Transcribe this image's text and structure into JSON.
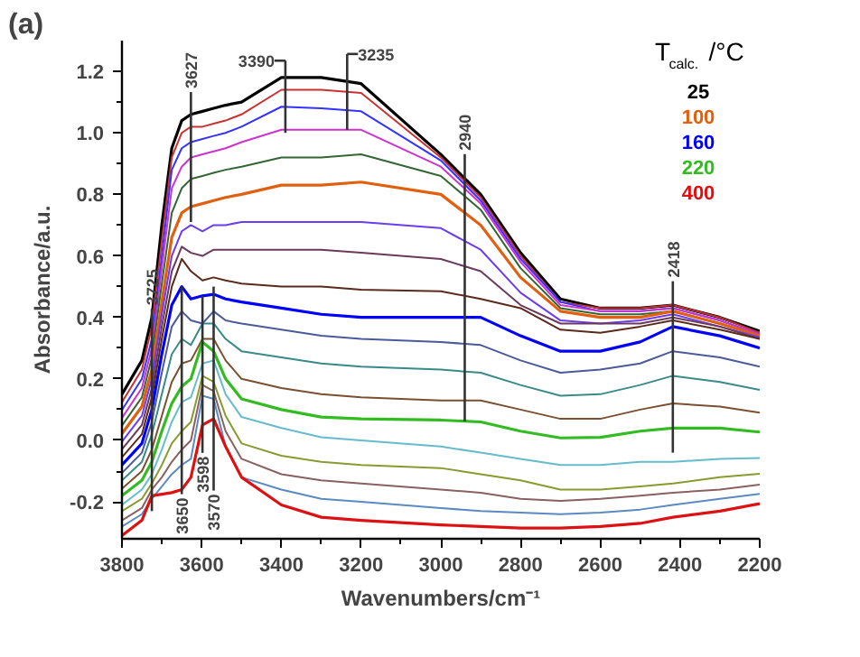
{
  "chart_data": {
    "type": "line",
    "xlabel": "Wavenumbers/cm⁻¹",
    "ylabel": "Absorbance/a.u.",
    "legend_title": "T$_{calc.}$/°C",
    "marker": "none",
    "line_style": "solid",
    "xlim": [
      3800,
      2200
    ],
    "xticks": [
      3800,
      3600,
      3400,
      3200,
      3000,
      2800,
      2600,
      2400,
      2200
    ],
    "ylim": [
      -0.32,
      1.3
    ],
    "yticks": [
      {
        "value": -0.2,
        "label": "-0.2"
      },
      {
        "value": 0,
        "label": "0.0"
      },
      {
        "value": 0.2,
        "label": "0.2"
      },
      {
        "value": 0.4,
        "label": "0.4"
      },
      {
        "value": 0.6,
        "label": "0.6"
      },
      {
        "value": 0.8,
        "label": "0.8"
      },
      {
        "value": 1.0,
        "label": "1.0"
      },
      {
        "value": 1.2,
        "label": "1.2"
      }
    ],
    "x": [
      3800,
      3750,
      3725,
      3700,
      3675,
      3650,
      3627,
      3598,
      3570,
      3540,
      3500,
      3400,
      3300,
      3200,
      3000,
      2900,
      2800,
      2700,
      2600,
      2500,
      2418,
      2300,
      2200
    ],
    "series": [
      {
        "name": "25",
        "color": "#000000",
        "values": [
          0.15,
          0.26,
          0.4,
          0.7,
          0.95,
          1.04,
          1.06,
          1.07,
          1.08,
          1.09,
          1.1,
          1.18,
          1.18,
          1.16,
          0.93,
          0.8,
          0.61,
          0.46,
          0.43,
          0.43,
          0.44,
          0.4,
          0.355
        ]
      },
      {
        "color": "#c83232",
        "values": [
          0.124,
          0.23,
          0.37,
          0.65,
          0.92,
          1.0,
          1.02,
          1.02,
          1.03,
          1.04,
          1.06,
          1.14,
          1.14,
          1.13,
          0.92,
          0.79,
          0.6,
          0.45,
          0.43,
          0.43,
          0.44,
          0.4,
          0.35
        ]
      },
      {
        "color": "#3333ff",
        "values": [
          0.099,
          0.2,
          0.33,
          0.6,
          0.88,
          0.95,
          0.97,
          0.98,
          0.99,
          1.0,
          1.02,
          1.085,
          1.08,
          1.07,
          0.91,
          0.78,
          0.59,
          0.45,
          0.42,
          0.42,
          0.43,
          0.39,
          0.345
        ]
      },
      {
        "color": "#cc33cc",
        "values": [
          0.073,
          0.17,
          0.3,
          0.56,
          0.82,
          0.89,
          0.92,
          0.93,
          0.94,
          0.95,
          0.97,
          1.01,
          1.01,
          1.01,
          0.89,
          0.77,
          0.58,
          0.44,
          0.42,
          0.42,
          0.43,
          0.39,
          0.345
        ]
      },
      {
        "color": "#336633",
        "values": [
          0.048,
          0.14,
          0.27,
          0.51,
          0.74,
          0.82,
          0.85,
          0.86,
          0.87,
          0.88,
          0.89,
          0.92,
          0.92,
          0.93,
          0.86,
          0.75,
          0.56,
          0.43,
          0.41,
          0.41,
          0.42,
          0.38,
          0.34
        ]
      },
      {
        "name": "100",
        "color": "#e06010",
        "values": [
          0.022,
          0.11,
          0.23,
          0.45,
          0.66,
          0.74,
          0.76,
          0.77,
          0.78,
          0.79,
          0.8,
          0.83,
          0.83,
          0.84,
          0.8,
          0.7,
          0.53,
          0.42,
          0.4,
          0.4,
          0.42,
          0.38,
          0.34
        ]
      },
      {
        "color": "#6a3df0",
        "values": [
          -0.004,
          0.08,
          0.2,
          0.41,
          0.6,
          0.68,
          0.7,
          0.68,
          0.7,
          0.7,
          0.71,
          0.71,
          0.71,
          0.71,
          0.69,
          0.62,
          0.48,
          0.39,
          0.38,
          0.39,
          0.41,
          0.37,
          0.335
        ]
      },
      {
        "color": "#6b3a5a",
        "values": [
          -0.029,
          0.05,
          0.17,
          0.37,
          0.55,
          0.63,
          0.61,
          0.6,
          0.62,
          0.62,
          0.62,
          0.62,
          0.62,
          0.61,
          0.59,
          0.55,
          0.44,
          0.38,
          0.38,
          0.38,
          0.4,
          0.37,
          0.33
        ]
      },
      {
        "color": "#5a2a1a",
        "values": [
          -0.055,
          0.02,
          0.14,
          0.33,
          0.5,
          0.59,
          0.55,
          0.52,
          0.53,
          0.52,
          0.51,
          0.5,
          0.5,
          0.49,
          0.485,
          0.46,
          0.43,
          0.36,
          0.35,
          0.37,
          0.39,
          0.36,
          0.33
        ]
      },
      {
        "name": "160",
        "color": "#0000ff",
        "values": [
          -0.08,
          -0.01,
          0.1,
          0.28,
          0.44,
          0.5,
          0.46,
          0.47,
          0.475,
          0.46,
          0.45,
          0.43,
          0.41,
          0.4,
          0.4,
          0.4,
          0.34,
          0.29,
          0.29,
          0.32,
          0.37,
          0.34,
          0.3
        ]
      },
      {
        "color": "#4a5a9a",
        "values": [
          -0.106,
          -0.04,
          0.06,
          0.22,
          0.37,
          0.42,
          0.39,
          0.38,
          0.42,
          0.39,
          0.38,
          0.36,
          0.34,
          0.33,
          0.32,
          0.31,
          0.26,
          0.22,
          0.23,
          0.25,
          0.29,
          0.27,
          0.24
        ]
      },
      {
        "color": "#3a8a8a",
        "values": [
          -0.13,
          -0.07,
          0.02,
          0.15,
          0.28,
          0.33,
          0.31,
          0.38,
          0.38,
          0.33,
          0.29,
          0.27,
          0.25,
          0.24,
          0.23,
          0.22,
          0.18,
          0.145,
          0.15,
          0.18,
          0.21,
          0.19,
          0.164
        ]
      },
      {
        "color": "#7a5030",
        "values": [
          -0.157,
          -0.1,
          -0.03,
          0.08,
          0.19,
          0.25,
          0.26,
          0.33,
          0.33,
          0.26,
          0.2,
          0.17,
          0.15,
          0.14,
          0.13,
          0.13,
          0.1,
          0.07,
          0.07,
          0.1,
          0.12,
          0.11,
          0.09
        ]
      },
      {
        "name": "220",
        "color": "#33bb22",
        "values": [
          -0.18,
          -0.13,
          -0.07,
          0.03,
          0.12,
          0.175,
          0.2,
          0.32,
          0.29,
          0.2,
          0.135,
          0.1,
          0.076,
          0.07,
          0.066,
          0.06,
          0.03,
          0.008,
          0.01,
          0.03,
          0.04,
          0.04,
          0.027
        ]
      },
      {
        "color": "#66bbcc",
        "values": [
          -0.21,
          -0.16,
          -0.11,
          -0.03,
          0.06,
          0.125,
          0.14,
          0.25,
          0.26,
          0.15,
          0.076,
          0.04,
          0.01,
          0.0,
          -0.02,
          -0.04,
          -0.06,
          -0.08,
          -0.08,
          -0.07,
          -0.07,
          -0.06,
          -0.057
        ]
      },
      {
        "color": "#8a9a30",
        "values": [
          -0.23,
          -0.19,
          -0.14,
          -0.08,
          -0.01,
          0.03,
          0.06,
          0.21,
          0.19,
          0.08,
          -0.01,
          -0.05,
          -0.07,
          -0.08,
          -0.09,
          -0.11,
          -0.13,
          -0.16,
          -0.16,
          -0.15,
          -0.14,
          -0.12,
          -0.109
        ]
      },
      {
        "color": "#8a6060",
        "values": [
          -0.26,
          -0.22,
          -0.16,
          -0.12,
          -0.07,
          -0.03,
          0.0,
          0.18,
          0.16,
          0.03,
          -0.06,
          -0.11,
          -0.13,
          -0.14,
          -0.16,
          -0.17,
          -0.19,
          -0.197,
          -0.19,
          -0.18,
          -0.17,
          -0.16,
          -0.144
        ]
      },
      {
        "color": "#5a8ac0",
        "values": [
          -0.28,
          -0.24,
          -0.19,
          -0.15,
          -0.11,
          -0.08,
          -0.06,
          0.145,
          0.135,
          -0.02,
          -0.12,
          -0.16,
          -0.19,
          -0.2,
          -0.22,
          -0.23,
          -0.235,
          -0.24,
          -0.235,
          -0.225,
          -0.21,
          -0.19,
          -0.174
        ]
      },
      {
        "name": "400",
        "color": "#dd1111",
        "values": [
          -0.31,
          -0.26,
          -0.18,
          -0.175,
          -0.17,
          -0.16,
          -0.12,
          0.05,
          0.07,
          -0.02,
          -0.12,
          -0.21,
          -0.25,
          -0.26,
          -0.275,
          -0.28,
          -0.285,
          -0.285,
          -0.28,
          -0.27,
          -0.25,
          -0.23,
          -0.206
        ]
      }
    ],
    "annotations": [
      "(a)",
      {
        "text": "3390",
        "x": 3390,
        "y": 1.0
      },
      {
        "text": "3235",
        "x": 3235,
        "y": 1.01
      },
      {
        "text": "3627",
        "x": 3627,
        "y": 0.71
      },
      {
        "text": "2940",
        "x": 2940,
        "y": 0.062
      },
      {
        "text": "2418",
        "x": 2418,
        "y": -0.04
      },
      {
        "text": "3725",
        "x": 3725,
        "y": -0.23
      },
      {
        "text": "3650",
        "x": 3650,
        "y": 0.5
      },
      {
        "text": "3598",
        "x": 3598,
        "y": 0.47
      },
      {
        "text": "3570",
        "x": 3570,
        "y": 0.5
      }
    ]
  }
}
